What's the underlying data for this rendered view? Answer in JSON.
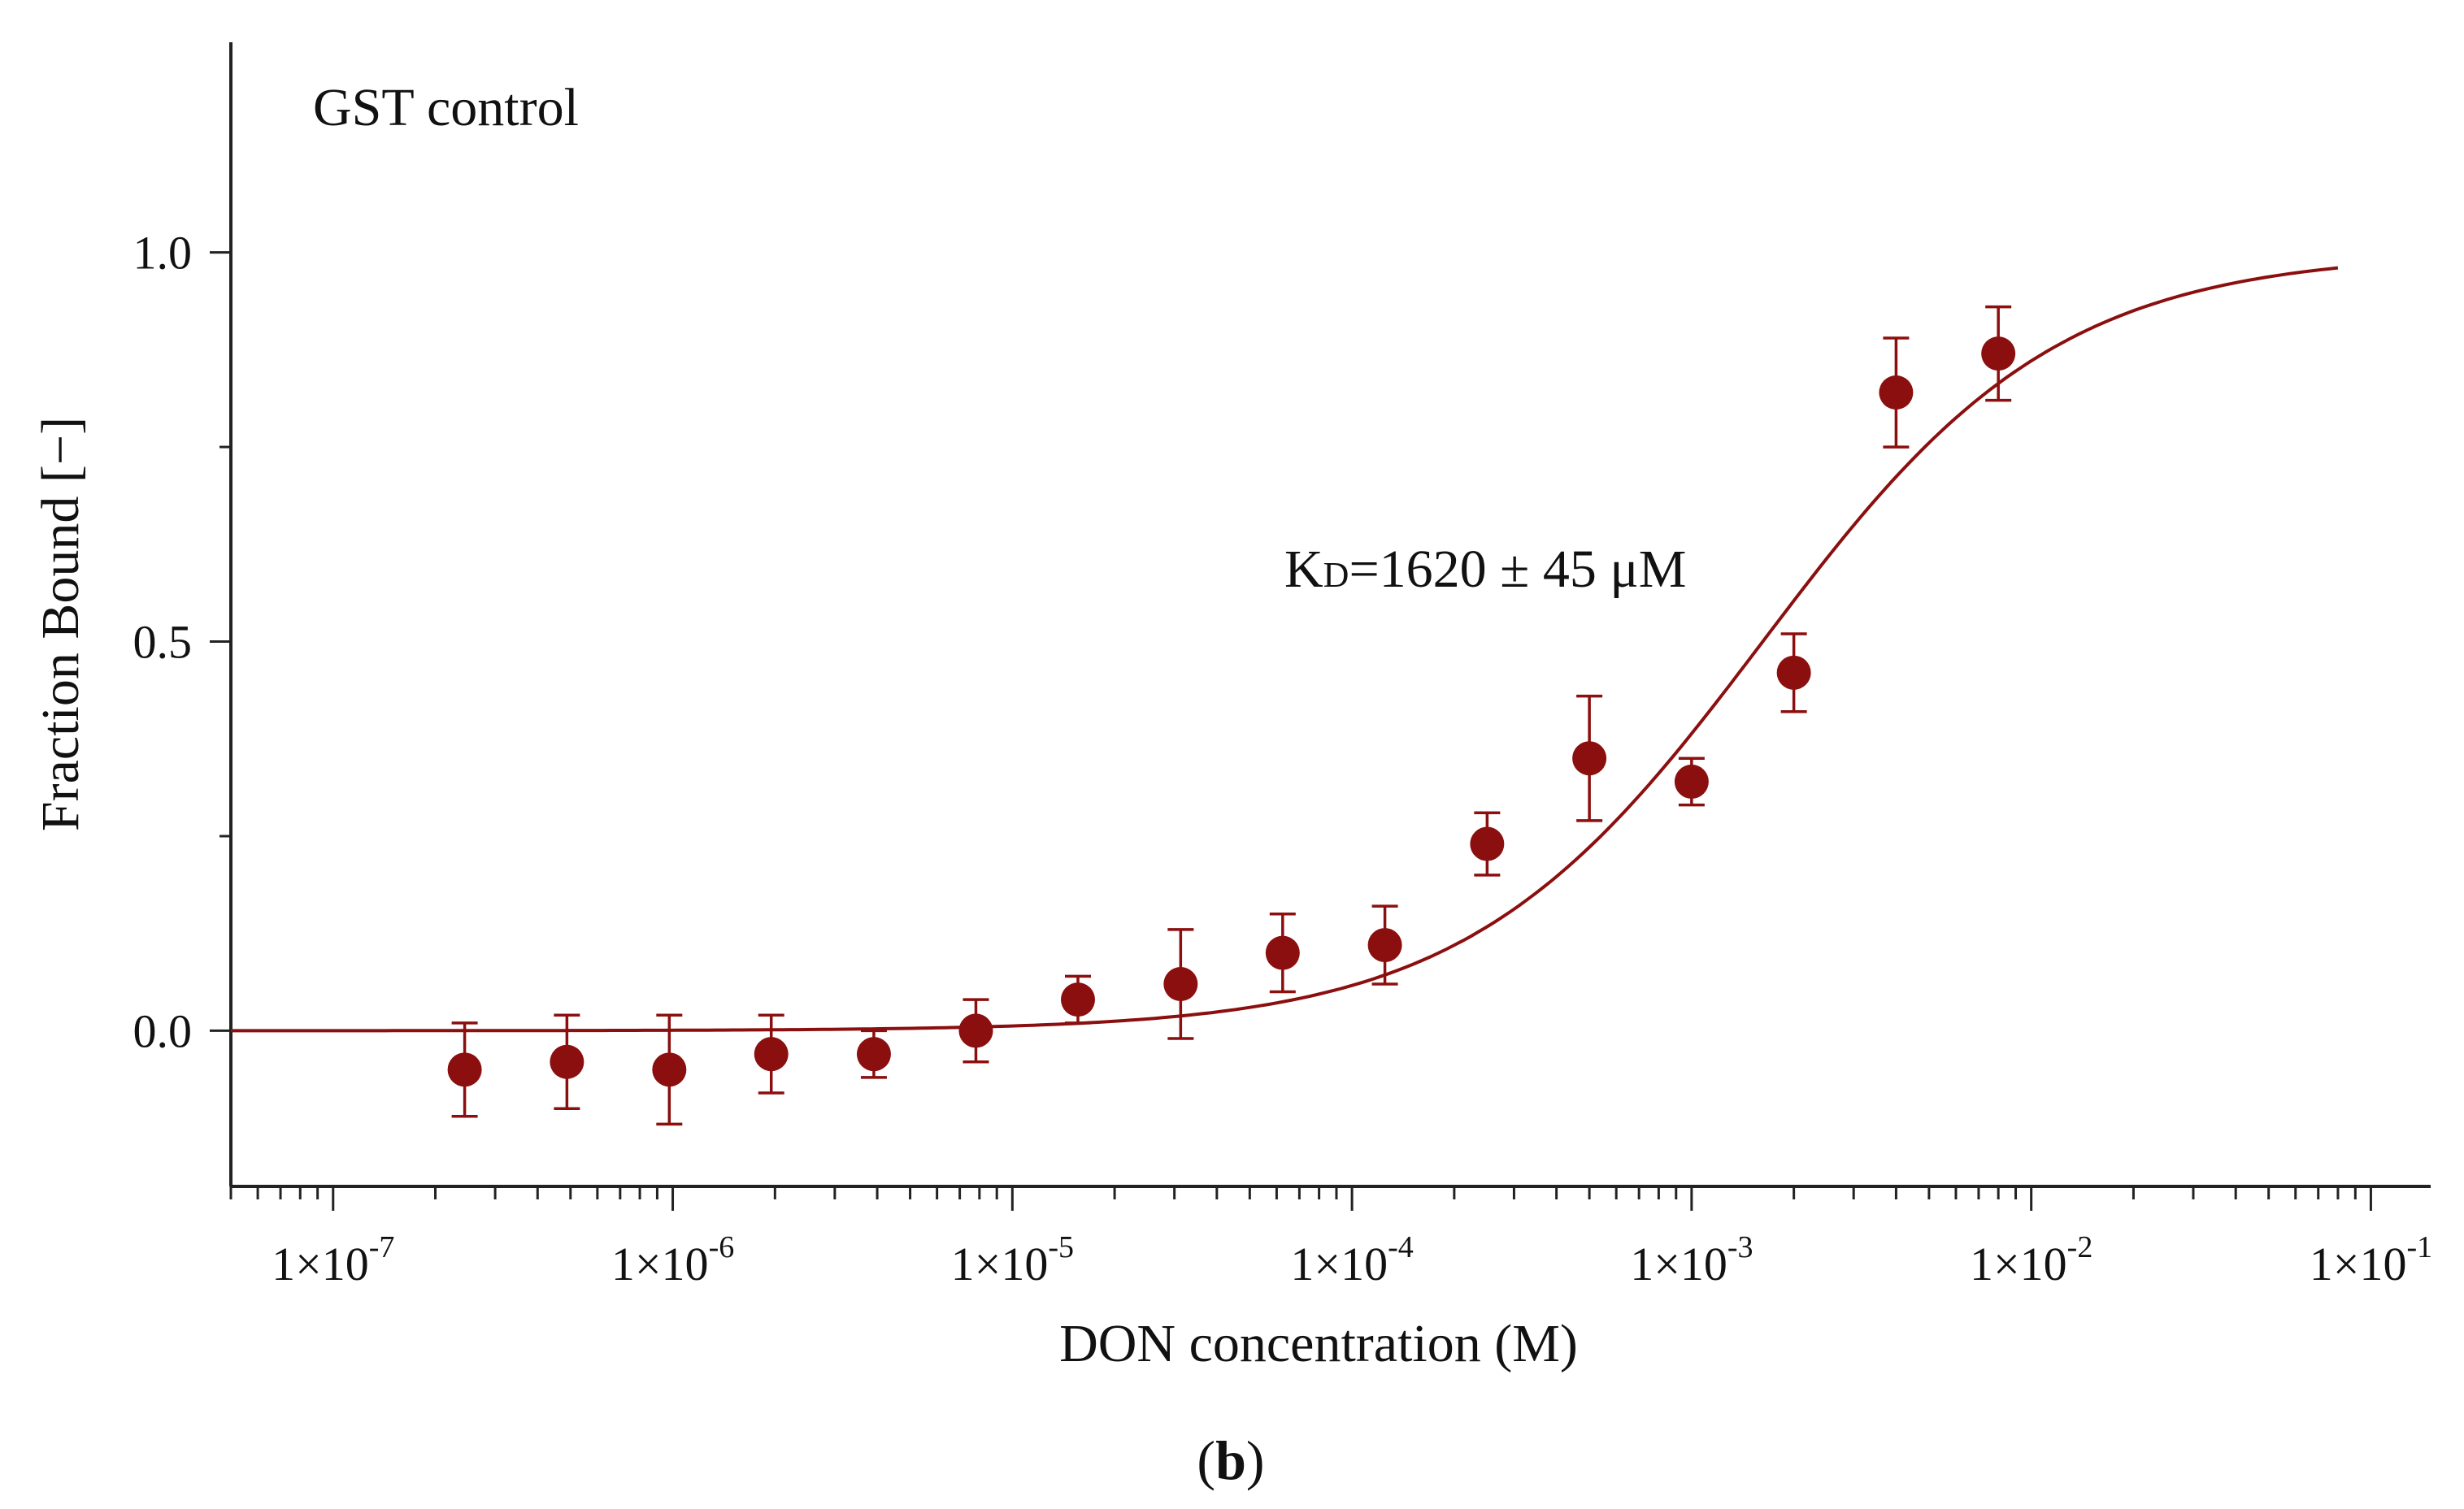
{
  "chart_data": {
    "type": "scatter",
    "panel_label_paren_open": "(",
    "panel_label_letter": "b",
    "panel_label_paren_close": ")",
    "title": "GST control",
    "annotation": {
      "k_main": "K",
      "k_sub": "D",
      "text_rest": "=1620 ± 45  μM"
    },
    "xlabel": "DON concentration (M)",
    "ylabel": "Fraction Bound [−]",
    "xscale": "log",
    "xlim": [
      5e-08,
      0.15
    ],
    "ylim": [
      -0.2,
      1.27
    ],
    "x_major_ticks": [
      1e-07,
      1e-06,
      1e-05,
      0.0001,
      0.001,
      0.01,
      0.1
    ],
    "x_tick_labels": [
      {
        "base": "1×10",
        "exp": "-7"
      },
      {
        "base": "1×10",
        "exp": "-6"
      },
      {
        "base": "1×10",
        "exp": "-5"
      },
      {
        "base": "1×10",
        "exp": "-4"
      },
      {
        "base": "1×10",
        "exp": "-3"
      },
      {
        "base": "1×10",
        "exp": "-2"
      },
      {
        "base": "1×10",
        "exp": "-1"
      }
    ],
    "y_ticks": [
      0.0,
      0.5,
      1.0
    ],
    "y_tick_labels": [
      "0.0",
      "0.5",
      "1.0"
    ],
    "color": "#8b0f0f",
    "series": [
      {
        "name": "GST control",
        "x": [
          2.44e-07,
          4.88e-07,
          9.77e-07,
          1.95e-06,
          3.91e-06,
          7.81e-06,
          1.56e-05,
          3.13e-05,
          6.25e-05,
          0.000125,
          0.00025,
          0.0005,
          0.001,
          0.002,
          0.004,
          0.008
        ],
        "y": [
          -0.05,
          -0.04,
          -0.05,
          -0.03,
          -0.03,
          0.0,
          0.04,
          0.06,
          0.1,
          0.11,
          0.24,
          0.35,
          0.32,
          0.46,
          0.82,
          0.87
        ],
        "err": [
          0.06,
          0.06,
          0.07,
          0.05,
          0.03,
          0.04,
          0.03,
          0.07,
          0.05,
          0.05,
          0.04,
          0.08,
          0.03,
          0.05,
          0.07,
          0.06
        ]
      }
    ],
    "fit": {
      "model": "hill",
      "kd": 0.00162,
      "kd_error": 4.5e-05,
      "bottom": 0.0,
      "top": 1.0,
      "x_range": [
        5e-08,
        0.08
      ]
    }
  }
}
